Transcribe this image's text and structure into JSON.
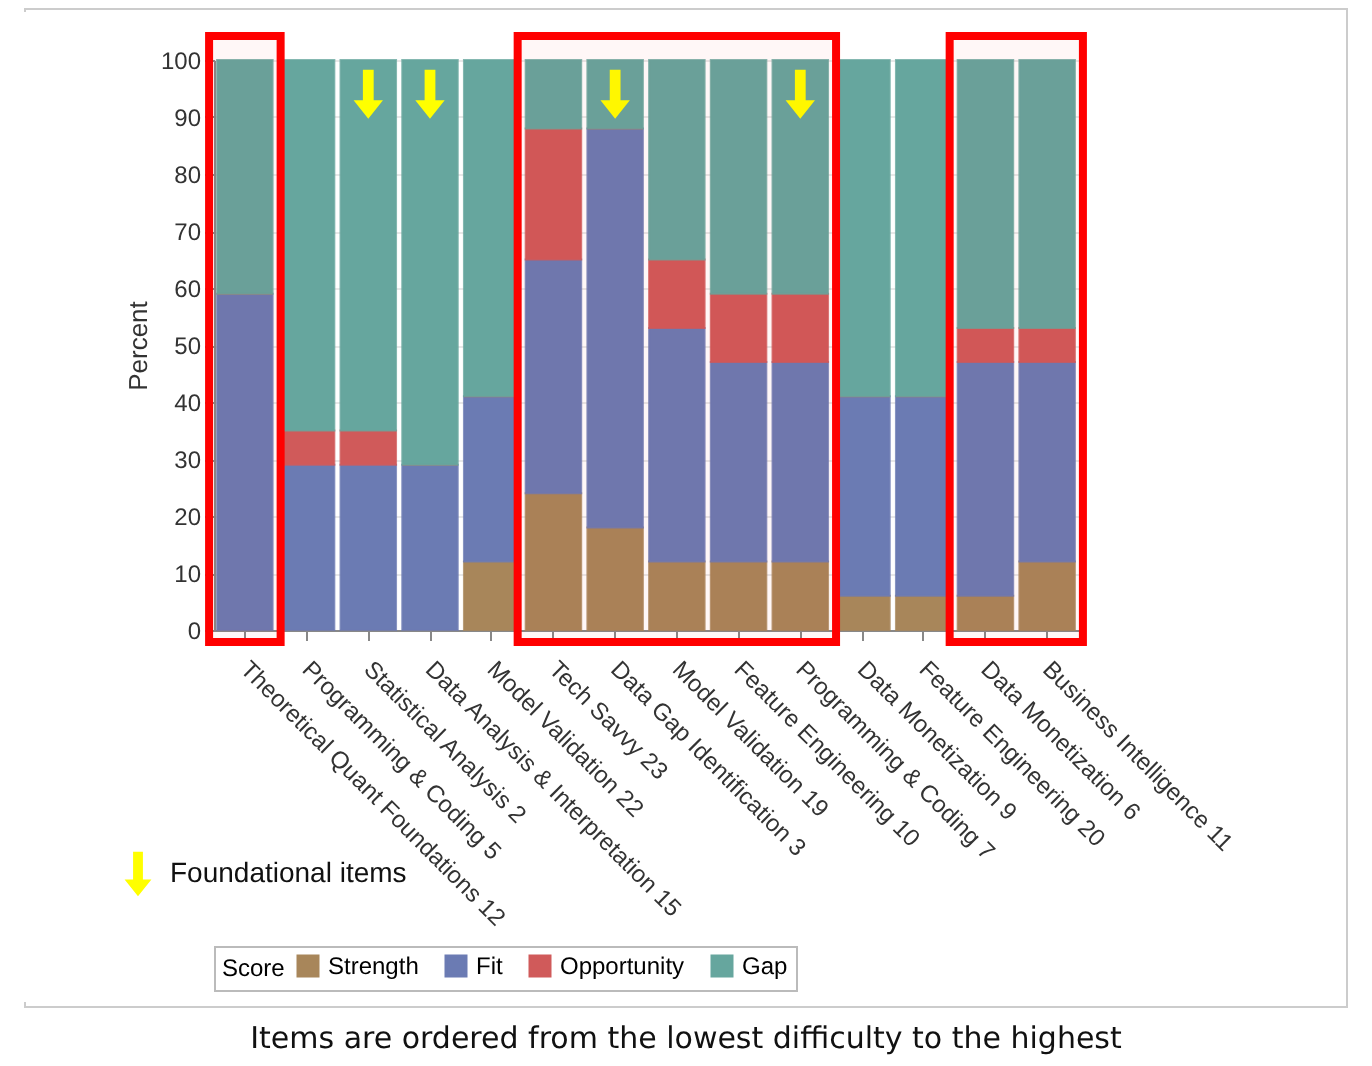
{
  "chart_data": {
    "type": "bar",
    "stacked": true,
    "ylabel": "Percent",
    "legend_title": "Score",
    "legend": "bottom",
    "grid": "y",
    "categories": [
      "Theoretical Quant Foundations 12",
      "Programming & Coding 5",
      "Statistical Analysis 2",
      "Data Analysis & Interpretation 15",
      "Model Validation 22",
      "Tech Savvy 23",
      "Data Gap Identification 3",
      "Model Validation 19",
      "Feature Engineering 10",
      "Programming & Coding 7",
      "Data Monetization 9",
      "Feature Engineering 20",
      "Data Monetization 6",
      "Business Intelligence 11"
    ],
    "ylim": [
      0,
      100
    ],
    "yticks": [
      0,
      10,
      20,
      30,
      40,
      50,
      60,
      70,
      80,
      90,
      100
    ],
    "series": [
      {
        "name": "Strength",
        "color": "#a8865a",
        "values": [
          0,
          0,
          0,
          0,
          12,
          24,
          18,
          12,
          12,
          12,
          6,
          6,
          6,
          12
        ]
      },
      {
        "name": "Fit",
        "color": "#6b7bb3",
        "values": [
          59,
          29,
          29,
          29,
          29,
          41,
          70,
          41,
          35,
          35,
          35,
          35,
          41,
          35
        ]
      },
      {
        "name": "Opportunity",
        "color": "#d05a5a",
        "values": [
          0,
          6,
          6,
          0,
          0,
          23,
          0,
          12,
          12,
          12,
          0,
          0,
          6,
          6
        ]
      },
      {
        "name": "Gap",
        "color": "#66a69e",
        "values": [
          41,
          65,
          65,
          71,
          59,
          12,
          12,
          35,
          41,
          41,
          59,
          59,
          47,
          47
        ]
      },
      {
        "name": "Foundational items",
        "type": "scatter",
        "color": "#ffff00",
        "x": [
          "Statistical Analysis 2",
          "Data Analysis & Interpretation 15",
          "Data Gap Identification 3",
          "Programming & Coding 7"
        ],
        "values": [
          94,
          94,
          94,
          94
        ]
      }
    ],
    "bands": [
      {
        "axis": "x",
        "from": "Theoretical Quant Foundations 12",
        "to": "Theoretical Quant Foundations 12",
        "color": "#ff0000"
      },
      {
        "axis": "x",
        "from": "Tech Savvy 23",
        "to": "Programming & Coding 7",
        "color": "#ff0000"
      },
      {
        "axis": "x",
        "from": "Data Monetization 6",
        "to": "Business Intelligence 11",
        "color": "#ff0000"
      }
    ],
    "annotations": [
      "Items are ordered from the lowest difficulty to the highest"
    ]
  }
}
